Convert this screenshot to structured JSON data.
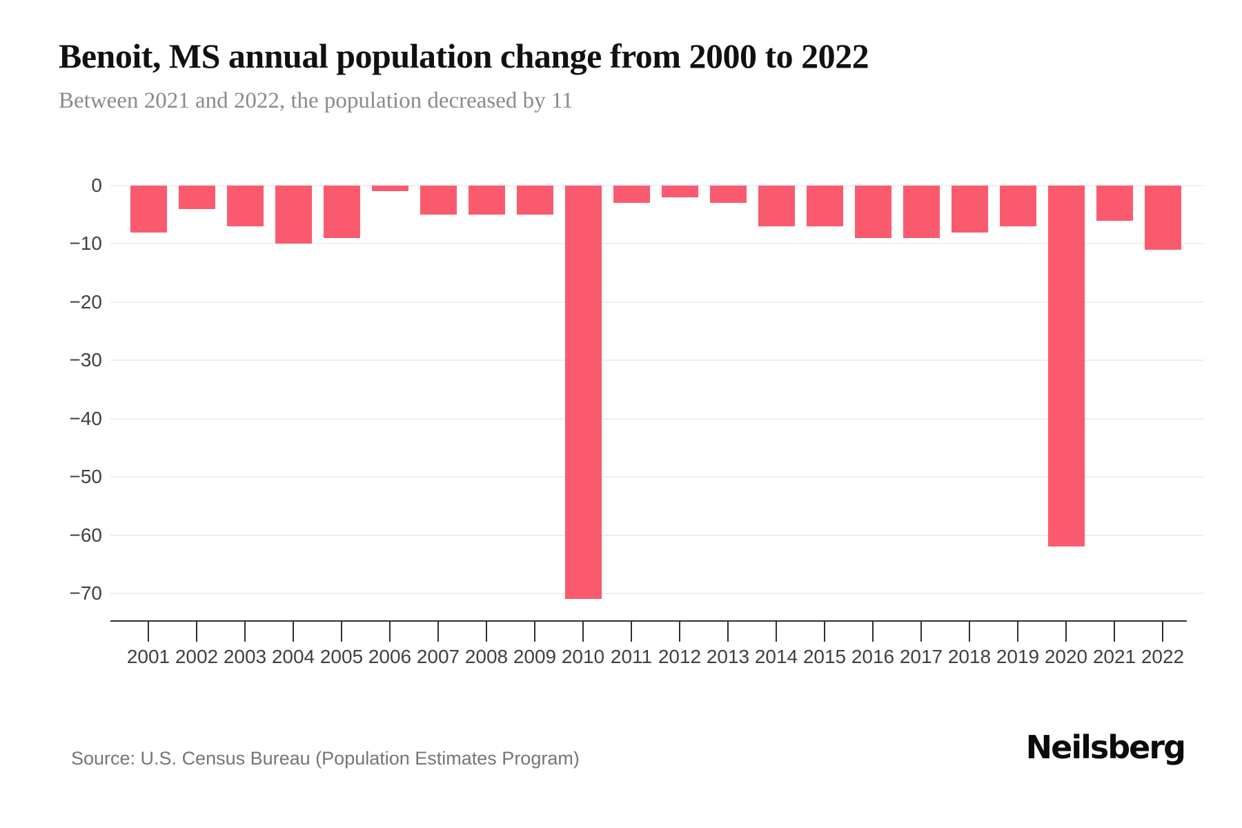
{
  "header": {
    "title": "Benoit, MS annual population change from 2000 to 2022",
    "subtitle": "Between 2021 and 2022, the population decreased by 11"
  },
  "chart_data": {
    "type": "bar",
    "title": "Benoit, MS annual population change from 2000 to 2022",
    "subtitle": "Between 2021 and 2022, the population decreased by 11",
    "categories": [
      "2001",
      "2002",
      "2003",
      "2004",
      "2005",
      "2006",
      "2007",
      "2008",
      "2009",
      "2010",
      "2011",
      "2012",
      "2013",
      "2014",
      "2015",
      "2016",
      "2017",
      "2018",
      "2019",
      "2020",
      "2021",
      "2022"
    ],
    "values": [
      -8,
      -4,
      -7,
      -10,
      -9,
      -1,
      -5,
      -5,
      -5,
      -71,
      -3,
      -2,
      -3,
      -7,
      -7,
      -9,
      -9,
      -8,
      -7,
      -62,
      -6,
      -11
    ],
    "xlabel": "",
    "ylabel": "",
    "ylim": [
      -75,
      0
    ],
    "yticks": [
      0,
      -10,
      -20,
      -30,
      -40,
      -50,
      -60,
      -70
    ],
    "grid": true,
    "legend": "none",
    "bar_color": "#fa5a6e"
  },
  "footer": {
    "source": "Source: U.S. Census Bureau (Population Estimates Program)",
    "brand": "Neilsberg"
  },
  "colors": {
    "bar": "#fa5a6e",
    "gridline": "#efefef",
    "axis": "#2e2e2e",
    "tick_text": "#3f3f3f",
    "subtitle_text": "#8a8a8a",
    "source_text": "#757575"
  }
}
